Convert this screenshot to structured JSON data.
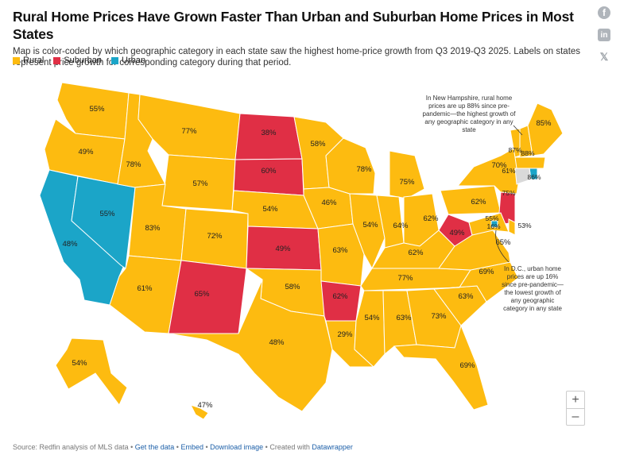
{
  "title": "Rural Home Prices Have Grown Faster Than Urban and Suburban Home Prices in Most States",
  "subtitle": "Map is color-coded by which geographic category in each state saw the highest home-price growth from Q3 2019-Q3 2025. Labels on states represent price growth for corresponding category during that period.",
  "legend": [
    {
      "label": "Rural",
      "color": "#FDBB10"
    },
    {
      "label": "Suburban",
      "color": "#E02F45"
    },
    {
      "label": "Urban",
      "color": "#1BA5C8"
    }
  ],
  "colors": {
    "rural": "#FDBB10",
    "suburban": "#E02F45",
    "urban": "#1BA5C8",
    "nodata": "#D9D9D9",
    "border": "#ffffff"
  },
  "annotations": {
    "nh": [
      "In New Hampshire, rural home",
      "prices are up 88% since pre-",
      "pandemic—the highest growth of",
      "any geographic category in any",
      "state"
    ],
    "dc": [
      "In D.C., urban home",
      "prices are up 16%",
      "since pre-pandemic—",
      "the lowest growth of",
      "any geographic",
      "category in any state"
    ]
  },
  "social": {
    "facebook": "f",
    "linkedin": "in",
    "x": "𝕏"
  },
  "zoom": {
    "in": "+",
    "out": "–"
  },
  "footer": {
    "source": "Source: Redfin analysis of MLS data • ",
    "get_data": "Get the data",
    "sep1": " • ",
    "embed": "Embed",
    "sep2": " • ",
    "download": "Download image",
    "sep3": " • Created with ",
    "datawrapper": "Datawrapper"
  },
  "states": {
    "WA": {
      "label": "55%",
      "category": "rural"
    },
    "OR": {
      "label": "49%",
      "category": "rural"
    },
    "CA": {
      "label": "48%",
      "category": "urban"
    },
    "NV": {
      "label": "55%",
      "category": "urban"
    },
    "ID": {
      "label": "78%",
      "category": "rural"
    },
    "MT": {
      "label": "77%",
      "category": "rural"
    },
    "WY": {
      "label": "57%",
      "category": "rural"
    },
    "UT": {
      "label": "83%",
      "category": "rural"
    },
    "AZ": {
      "label": "61%",
      "category": "rural"
    },
    "CO": {
      "label": "72%",
      "category": "rural"
    },
    "NM": {
      "label": "65%",
      "category": "suburban"
    },
    "ND": {
      "label": "38%",
      "category": "suburban"
    },
    "SD": {
      "label": "60%",
      "category": "suburban"
    },
    "NE": {
      "label": "54%",
      "category": "rural"
    },
    "KS": {
      "label": "49%",
      "category": "suburban"
    },
    "OK": {
      "label": "58%",
      "category": "rural"
    },
    "TX": {
      "label": "48%",
      "category": "rural"
    },
    "MN": {
      "label": "58%",
      "category": "rural"
    },
    "IA": {
      "label": "46%",
      "category": "rural"
    },
    "MO": {
      "label": "63%",
      "category": "rural"
    },
    "AR": {
      "label": "62%",
      "category": "suburban"
    },
    "LA": {
      "label": "29%",
      "category": "rural"
    },
    "WI": {
      "label": "78%",
      "category": "rural"
    },
    "IL": {
      "label": "54%",
      "category": "rural"
    },
    "MI": {
      "label": "75%",
      "category": "rural"
    },
    "IN": {
      "label": "64%",
      "category": "rural"
    },
    "OH": {
      "label": "62%",
      "category": "rural"
    },
    "KY": {
      "label": "62%",
      "category": "rural"
    },
    "TN": {
      "label": "77%",
      "category": "rural"
    },
    "MS": {
      "label": "54%",
      "category": "rural"
    },
    "AL": {
      "label": "63%",
      "category": "rural"
    },
    "GA": {
      "label": "73%",
      "category": "rural"
    },
    "FL": {
      "label": "69%",
      "category": "rural"
    },
    "SC": {
      "label": "63%",
      "category": "rural"
    },
    "NC": {
      "label": "69%",
      "category": "rural"
    },
    "VA": {
      "label": "65%",
      "category": "rural"
    },
    "WV": {
      "label": "49%",
      "category": "suburban"
    },
    "PA": {
      "label": "62%",
      "category": "rural"
    },
    "NY": {
      "label": "70%",
      "category": "rural"
    },
    "VT": {
      "label": "87%",
      "category": "rural"
    },
    "NH": {
      "label": "88%",
      "category": "rural"
    },
    "ME": {
      "label": "85%",
      "category": "rural"
    },
    "MA": {
      "label": "61%",
      "category": "rural"
    },
    "RI": {
      "label": "86%",
      "category": "urban"
    },
    "CT": {
      "label": "",
      "category": "nodata"
    },
    "NJ": {
      "label": "75%",
      "category": "suburban"
    },
    "DE": {
      "label": "53%",
      "category": "rural"
    },
    "MD": {
      "label": "55%",
      "category": "rural"
    },
    "DC": {
      "label": "16%",
      "category": "urban"
    },
    "AK": {
      "label": "54%",
      "category": "rural"
    },
    "HI": {
      "label": "47%",
      "category": "rural"
    }
  }
}
